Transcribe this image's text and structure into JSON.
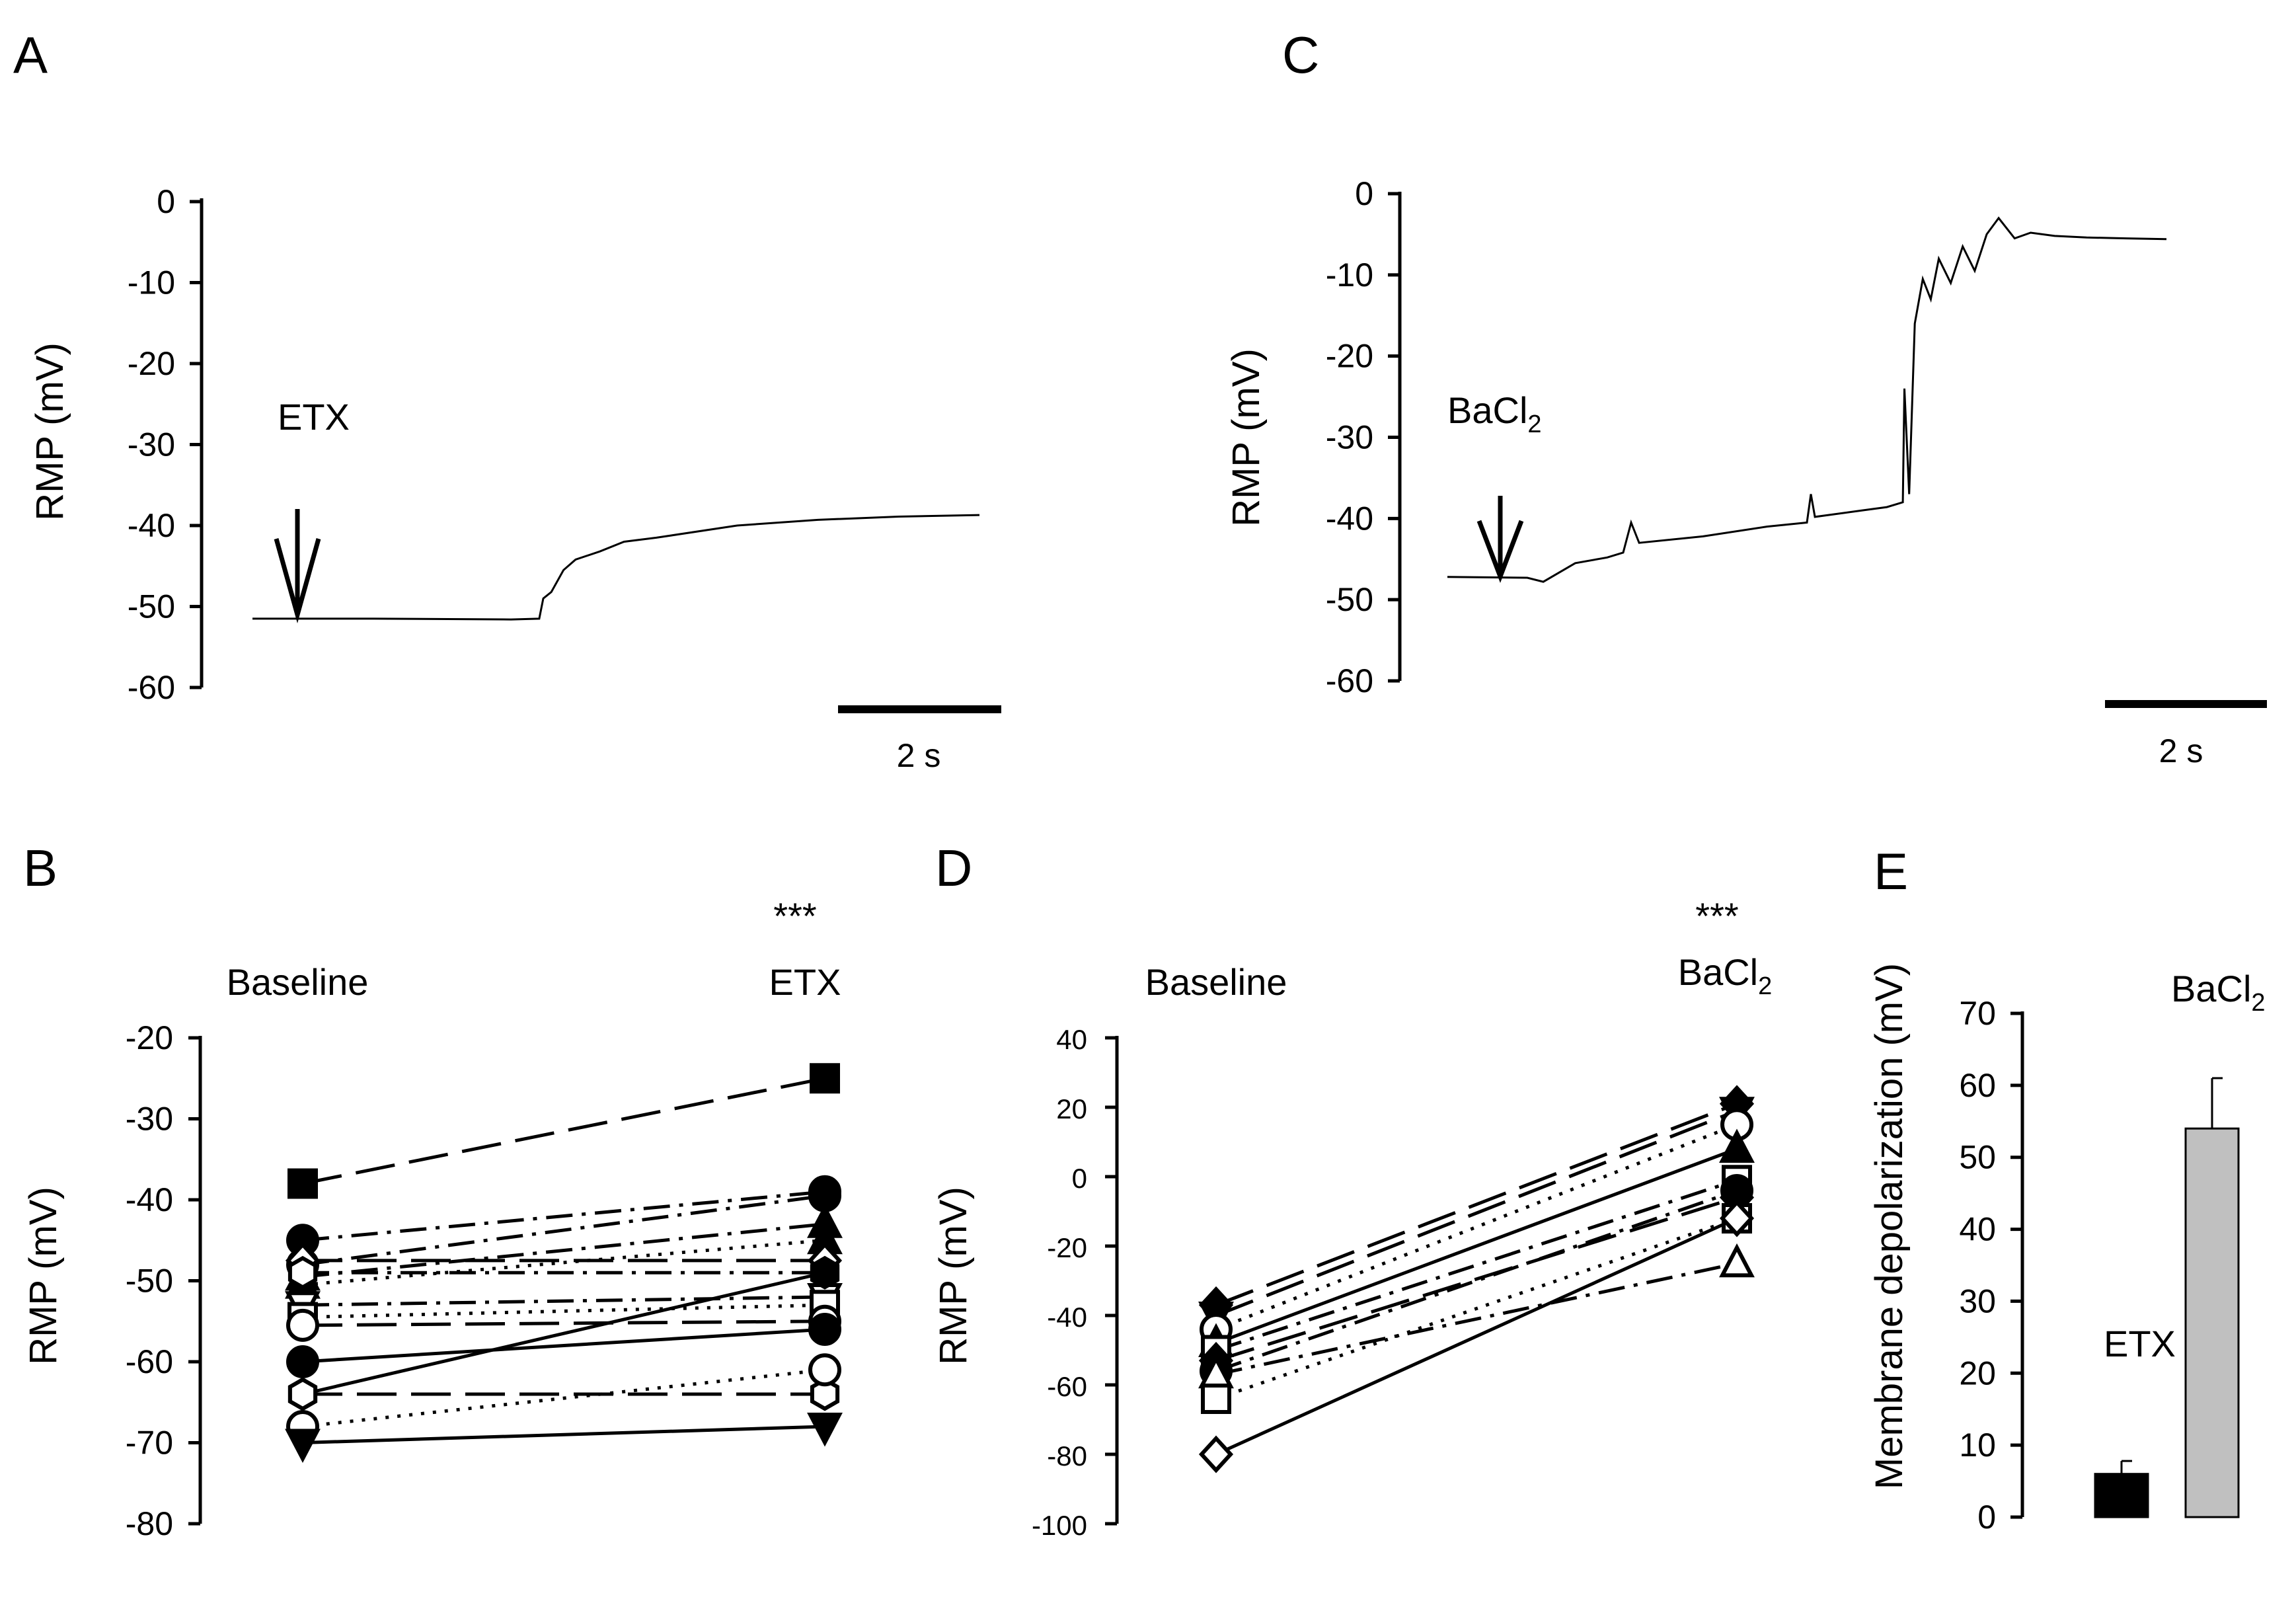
{
  "chart_data": [
    {
      "panel": "A",
      "type": "line",
      "ylabel": "RMP (mV)",
      "ylim": [
        -60,
        0
      ],
      "yticks": [
        "0",
        "-10",
        "-20",
        "-30",
        "-40",
        "-50",
        "-60"
      ],
      "drug_label": "ETX",
      "scalebar_label": "2 s",
      "x_range_s": [
        0,
        9.0
      ],
      "arrow_time_s": 0.5,
      "trace_s": [
        [
          0,
          -51.5
        ],
        [
          1.5,
          -51.5
        ],
        [
          3.2,
          -51.6
        ],
        [
          3.55,
          -51.5
        ],
        [
          3.6,
          -49
        ],
        [
          3.7,
          -48.2
        ],
        [
          3.85,
          -45.5
        ],
        [
          4.0,
          -44.2
        ],
        [
          4.3,
          -43.2
        ],
        [
          4.6,
          -42
        ],
        [
          5.0,
          -41.5
        ],
        [
          6.0,
          -40.0
        ],
        [
          7.0,
          -39.3
        ],
        [
          8.0,
          -38.9
        ],
        [
          9.0,
          -38.7
        ]
      ]
    },
    {
      "panel": "C",
      "type": "line",
      "ylabel": "RMP (mV)",
      "ylim": [
        -60,
        0
      ],
      "yticks": [
        "0",
        "-10",
        "-20",
        "-30",
        "-40",
        "-50",
        "-60"
      ],
      "drug_label_main": "BaCl",
      "drug_label_sub": "2",
      "scalebar_label": "2 s",
      "x_range_s": [
        0,
        9.0
      ],
      "arrow_time_s": 0.55,
      "trace_s": [
        [
          0,
          -47.2
        ],
        [
          1.0,
          -47.3
        ],
        [
          1.2,
          -47.8
        ],
        [
          1.6,
          -45.5
        ],
        [
          2.0,
          -44.8
        ],
        [
          2.2,
          -44.2
        ],
        [
          2.3,
          -40.5
        ],
        [
          2.4,
          -43.0
        ],
        [
          3.2,
          -42.2
        ],
        [
          4.0,
          -41.0
        ],
        [
          4.5,
          -40.5
        ],
        [
          4.55,
          -37.0
        ],
        [
          4.6,
          -39.8
        ],
        [
          5.2,
          -39.0
        ],
        [
          5.5,
          -38.6
        ],
        [
          5.7,
          -38.0
        ],
        [
          5.72,
          -24.0
        ],
        [
          5.78,
          -37.0
        ],
        [
          5.85,
          -16.0
        ],
        [
          5.95,
          -10.5
        ],
        [
          6.05,
          -13.0
        ],
        [
          6.15,
          -8.0
        ],
        [
          6.3,
          -11.0
        ],
        [
          6.45,
          -6.5
        ],
        [
          6.6,
          -9.5
        ],
        [
          6.75,
          -5.0
        ],
        [
          6.9,
          -3.0
        ],
        [
          7.1,
          -5.5
        ],
        [
          7.3,
          -4.8
        ],
        [
          7.6,
          -5.2
        ],
        [
          8.0,
          -5.4
        ],
        [
          8.5,
          -5.5
        ],
        [
          9.0,
          -5.6
        ]
      ]
    },
    {
      "panel": "B",
      "type": "line",
      "ylabel": "RMP (mV)",
      "ylim": [
        -80,
        -20
      ],
      "yticks": [
        "-20",
        "-30",
        "-40",
        "-50",
        "-60",
        "-70",
        "-80"
      ],
      "categories": [
        "Baseline",
        "ETX"
      ],
      "significance": "***",
      "series": [
        {
          "values": [
            -38,
            -25
          ],
          "marker": "square",
          "filled": true,
          "dash": "long"
        },
        {
          "values": [
            -45,
            -39
          ],
          "marker": "circle",
          "filled": true,
          "dash": "dashdot"
        },
        {
          "values": [
            -48,
            -39.5
          ],
          "marker": "circle",
          "filled": true,
          "dash": "dashdot"
        },
        {
          "values": [
            -49.5,
            -43
          ],
          "marker": "triangle-up",
          "filled": true,
          "dash": "dashdot"
        },
        {
          "values": [
            -50.5,
            -45
          ],
          "marker": "triangle-up",
          "filled": true,
          "dash": "dot"
        },
        {
          "values": [
            -47.5,
            -47.5
          ],
          "marker": "diamond",
          "filled": false,
          "dash": "long"
        },
        {
          "values": [
            -49,
            -49
          ],
          "marker": "hexagon",
          "filled": false,
          "dash": "dashdot"
        },
        {
          "values": [
            -53,
            -52
          ],
          "marker": "triangle-down",
          "filled": false,
          "dash": "dashdot"
        },
        {
          "values": [
            -54.5,
            -53
          ],
          "marker": "square",
          "filled": false,
          "dash": "dot"
        },
        {
          "values": [
            -55.5,
            -55
          ],
          "marker": "circle",
          "filled": false,
          "dash": "long"
        },
        {
          "values": [
            -60,
            -56
          ],
          "marker": "circle",
          "filled": true,
          "dash": "solid"
        },
        {
          "values": [
            -64,
            -49
          ],
          "marker": "hexagon",
          "filled": true,
          "dash": "solid"
        },
        {
          "values": [
            -64,
            -64
          ],
          "marker": "hexagon",
          "filled": false,
          "dash": "long"
        },
        {
          "values": [
            -68,
            -61
          ],
          "marker": "circle",
          "filled": false,
          "dash": "dot"
        },
        {
          "values": [
            -70,
            -68
          ],
          "marker": "triangle-down",
          "filled": true,
          "dash": "solid"
        }
      ]
    },
    {
      "panel": "D",
      "type": "line",
      "ylabel": "RMP (mV)",
      "ylim": [
        -100,
        40
      ],
      "yticks": [
        "40",
        "20",
        "0",
        "-20",
        "-40",
        "-60",
        "-80",
        "-100"
      ],
      "categories": [
        "Baseline",
        "BaCl2"
      ],
      "category_labels": [
        {
          "main": "Baseline",
          "sub": ""
        },
        {
          "main": "BaCl",
          "sub": "2"
        }
      ],
      "significance": "***",
      "series": [
        {
          "values": [
            -37,
            21
          ],
          "marker": "diamond",
          "filled": true,
          "dash": "long"
        },
        {
          "values": [
            -40,
            19
          ],
          "marker": "triangle-down",
          "filled": true,
          "dash": "long"
        },
        {
          "values": [
            -44,
            15
          ],
          "marker": "circle",
          "filled": false,
          "dash": "dot"
        },
        {
          "values": [
            -48,
            8
          ],
          "marker": "triangle-up",
          "filled": true,
          "dash": "solid"
        },
        {
          "values": [
            -50,
            -1
          ],
          "marker": "square",
          "filled": false,
          "dash": "dashdot"
        },
        {
          "values": [
            -53,
            -6
          ],
          "marker": "diamond",
          "filled": true,
          "dash": "long"
        },
        {
          "values": [
            -56,
            -4
          ],
          "marker": "circle",
          "filled": true,
          "dash": "dashdot"
        },
        {
          "values": [
            -57,
            -25
          ],
          "marker": "triangle-up",
          "filled": false,
          "dash": "dashdot"
        },
        {
          "values": [
            -64,
            -12
          ],
          "marker": "square",
          "filled": false,
          "dash": "dot"
        },
        {
          "values": [
            -80,
            -12
          ],
          "marker": "diamond",
          "filled": false,
          "dash": "solid"
        }
      ]
    },
    {
      "panel": "E",
      "type": "bar",
      "ylabel": "Membrane depolarization (mV)",
      "ylim": [
        0,
        70
      ],
      "yticks": [
        "70",
        "60",
        "50",
        "40",
        "30",
        "20",
        "10",
        "0"
      ],
      "categories": [
        "ETX",
        "BaCl2"
      ],
      "category_labels": [
        {
          "main": "ETX",
          "sub": ""
        },
        {
          "main": "BaCl",
          "sub": "2"
        }
      ],
      "values": [
        6,
        54
      ],
      "errors": [
        1.8,
        7
      ],
      "colors": [
        "#000000",
        "#c0c0c0"
      ]
    }
  ]
}
